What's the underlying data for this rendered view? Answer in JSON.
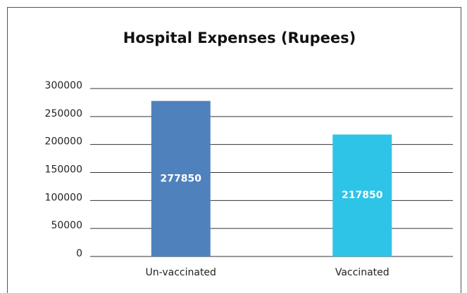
{
  "chart_data": {
    "type": "bar",
    "title": "Hospital Expenses (Rupees)",
    "categories": [
      "Un-vaccinated",
      "Vaccinated"
    ],
    "values": [
      277850,
      217850
    ],
    "colors": [
      "#4f81bd",
      "#2ec4e8"
    ],
    "ylim": [
      0,
      300000
    ],
    "yticks": [
      0,
      50000,
      100000,
      150000,
      200000,
      250000,
      300000
    ],
    "grid": true
  }
}
